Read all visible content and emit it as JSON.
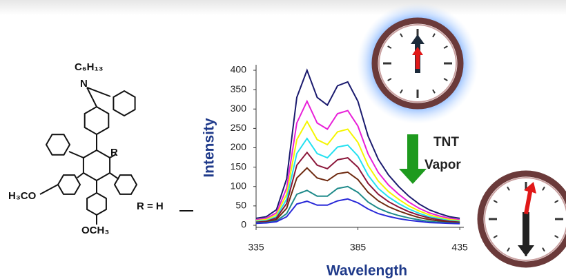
{
  "chart_data": {
    "type": "line",
    "xlabel": "Wavelength",
    "ylabel": "Intensity",
    "x": [
      335,
      340,
      345,
      350,
      355,
      360,
      365,
      370,
      375,
      380,
      385,
      390,
      395,
      400,
      405,
      410,
      415,
      420,
      425,
      430,
      435
    ],
    "series": [
      {
        "color": "#1a1a6e",
        "values": [
          18,
          22,
          40,
          120,
          330,
          400,
          330,
          310,
          360,
          370,
          320,
          230,
          170,
          130,
          100,
          75,
          55,
          40,
          30,
          22,
          18
        ]
      },
      {
        "color": "#e81ed8",
        "values": [
          14,
          18,
          32,
          96,
          264,
          320,
          264,
          248,
          288,
          296,
          256,
          184,
          136,
          104,
          80,
          60,
          44,
          32,
          24,
          18,
          14
        ]
      },
      {
        "color": "#f5f500",
        "values": [
          12,
          15,
          27,
          80,
          221,
          268,
          221,
          208,
          241,
          248,
          214,
          154,
          114,
          87,
          67,
          50,
          37,
          27,
          20,
          15,
          12
        ]
      },
      {
        "color": "#22e0f0",
        "values": [
          10,
          12,
          22,
          67,
          185,
          224,
          185,
          174,
          202,
          207,
          179,
          129,
          95,
          73,
          56,
          42,
          31,
          22,
          17,
          12,
          10
        ]
      },
      {
        "color": "#8a1438",
        "values": [
          8,
          10,
          19,
          56,
          155,
          188,
          155,
          146,
          169,
          174,
          150,
          108,
          80,
          61,
          47,
          35,
          26,
          19,
          14,
          10,
          8
        ]
      },
      {
        "color": "#6e2a10",
        "values": [
          7,
          8,
          15,
          44,
          122,
          148,
          122,
          115,
          133,
          137,
          118,
          85,
          63,
          48,
          37,
          28,
          20,
          15,
          11,
          8,
          7
        ]
      },
      {
        "color": "#1e8a8a",
        "values": [
          6,
          7,
          11,
          30,
          80,
          90,
          75,
          75,
          95,
          100,
          85,
          60,
          44,
          33,
          25,
          19,
          14,
          10,
          8,
          6,
          5
        ]
      },
      {
        "color": "#2a2ad8",
        "values": [
          5,
          6,
          9,
          22,
          55,
          62,
          52,
          52,
          63,
          68,
          58,
          42,
          30,
          23,
          17,
          13,
          10,
          7,
          6,
          5,
          4
        ]
      }
    ],
    "xlim": [
      335,
      437
    ],
    "ylim": [
      0,
      400
    ],
    "xticks": [
      335,
      385,
      435
    ],
    "yticks": [
      0,
      50,
      100,
      150,
      200,
      250,
      300,
      350,
      400
    ]
  },
  "structure": {
    "substituent": "C₆H₁₃",
    "nitrogen": "N",
    "r_group": "R",
    "left_group": "H₃CO",
    "bottom_group": "OCH₃",
    "r_definition": "R = H"
  },
  "annotation": {
    "line1": "TNT",
    "line2": "Vapor"
  }
}
